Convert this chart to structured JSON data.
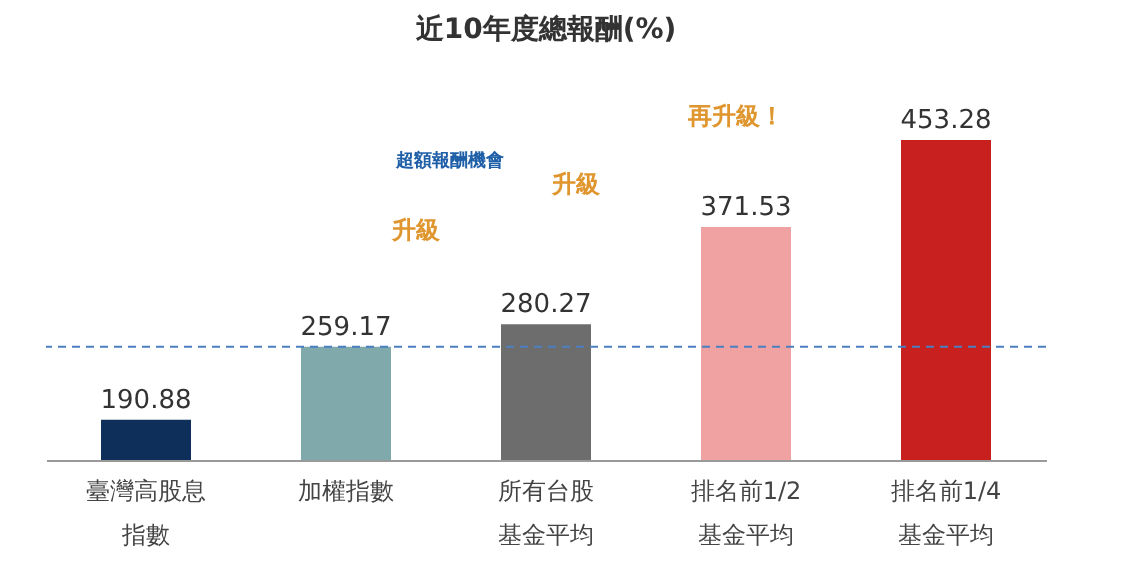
{
  "chart_data": {
    "type": "bar",
    "title": "近10年度總報酬(%)",
    "categories": [
      "臺灣高股息指數",
      "加權指數",
      "所有台股基金平均",
      "排名前1/2基金平均",
      "排名前1/4基金平均"
    ],
    "values": [
      190.88,
      259.17,
      280.27,
      371.53,
      453.28
    ],
    "colors": [
      "#0d2f5a",
      "#7fa9ab",
      "#6d6d6d",
      "#f0a2a2",
      "#c8201f"
    ],
    "ylim": [
      153,
      453.28
    ],
    "tick_labels": "x",
    "grid": false,
    "data_labels": true,
    "ref_lines": [
      {
        "axis": "y",
        "value": 259.17,
        "color": "#4a7fc1",
        "line_style": "dashed"
      }
    ],
    "annotations": [
      "超額報酬機會",
      "升級",
      "升級",
      "再升級！"
    ]
  }
}
